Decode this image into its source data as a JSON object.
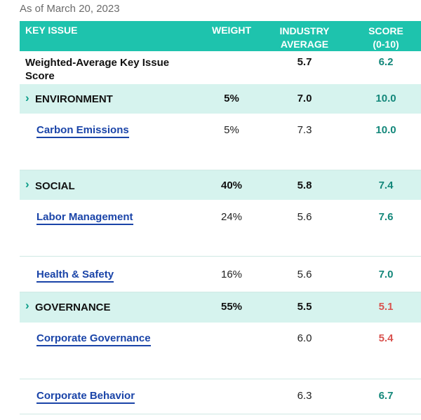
{
  "as_of": "As of March 20, 2023",
  "header": {
    "key_issue": "KEY ISSUE",
    "weight": "WEIGHT",
    "industry_line1": "INDUSTRY",
    "industry_line2": "AVERAGE",
    "score_line1": "SCORE",
    "score_line2": "(0-10)"
  },
  "summary": {
    "label_line1": "Weighted-Average Key Issue",
    "label_line2": "Score",
    "industry_avg": "5.7",
    "score": "6.2"
  },
  "sections": [
    {
      "label": "ENVIRONMENT",
      "weight": "5%",
      "industry_avg": "7.0",
      "score": "10.0",
      "items": [
        {
          "label": "Carbon Emissions",
          "weight": "5%",
          "industry_avg": "7.3",
          "score": "10.0"
        }
      ]
    },
    {
      "label": "SOCIAL",
      "weight": "40%",
      "industry_avg": "5.8",
      "score": "7.4",
      "items": [
        {
          "label": "Labor Management",
          "weight": "24%",
          "industry_avg": "5.6",
          "score": "7.6"
        },
        {
          "label": "Health & Safety",
          "weight": "16%",
          "industry_avg": "5.6",
          "score": "7.0"
        }
      ]
    },
    {
      "label": "GOVERNANCE",
      "weight": "55%",
      "industry_avg": "5.5",
      "score": "5.1",
      "items": [
        {
          "label": "Corporate Governance",
          "weight": "",
          "industry_avg": "6.0",
          "score": "5.4"
        },
        {
          "label": "Corporate Behavior",
          "weight": "",
          "industry_avg": "6.3",
          "score": "6.7"
        }
      ]
    }
  ],
  "colors": {
    "header_bg": "#1ec3ad",
    "section_bg": "#d6f3ee",
    "score_good": "#13877a",
    "score_low": "#d9534f",
    "link": "#1a44a8"
  }
}
